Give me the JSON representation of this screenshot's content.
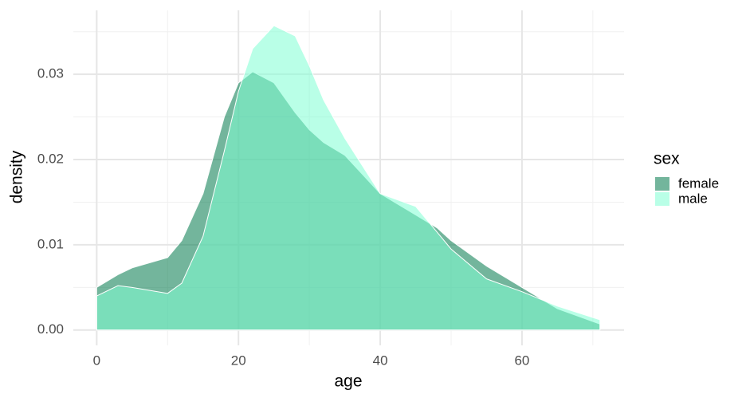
{
  "chart_data": {
    "type": "area",
    "x_label": "age",
    "y_label": "density",
    "x": [
      0,
      3,
      5,
      10,
      12,
      15,
      18,
      20,
      22,
      25,
      28,
      30,
      32,
      35,
      40,
      45,
      48,
      50,
      55,
      60,
      65,
      71
    ],
    "series": [
      {
        "name": "female",
        "color": "#00784a",
        "values": [
          0.005,
          0.0065,
          0.0073,
          0.0085,
          0.0105,
          0.016,
          0.025,
          0.029,
          0.0303,
          0.029,
          0.0255,
          0.0235,
          0.022,
          0.0205,
          0.016,
          0.0135,
          0.012,
          0.0105,
          0.0075,
          0.005,
          0.0025,
          0.0007
        ]
      },
      {
        "name": "male",
        "color": "#7fffd4",
        "values": [
          0.004,
          0.0052,
          0.005,
          0.0043,
          0.0055,
          0.011,
          0.021,
          0.028,
          0.033,
          0.0357,
          0.0345,
          0.031,
          0.027,
          0.0225,
          0.016,
          0.0145,
          0.0115,
          0.0095,
          0.006,
          0.0045,
          0.0028,
          0.0012
        ]
      }
    ],
    "alpha": 0.55,
    "legend_title": "sex",
    "legend_position": "right",
    "xlim": [
      -3.3,
      74.4
    ],
    "ylim": [
      -0.0018,
      0.0375
    ],
    "xticks": [
      0,
      20,
      40,
      60
    ],
    "yticks": [
      {
        "value": 0,
        "label": "0.00"
      },
      {
        "value": 0.01,
        "label": "0.01"
      },
      {
        "value": 0.02,
        "label": "0.02"
      },
      {
        "value": 0.03,
        "label": "0.03"
      }
    ],
    "x_minor_ticks": [
      10,
      30,
      50,
      70
    ],
    "y_minor_ticks": [
      0.005,
      0.015,
      0.025,
      0.035
    ],
    "grid": true
  }
}
